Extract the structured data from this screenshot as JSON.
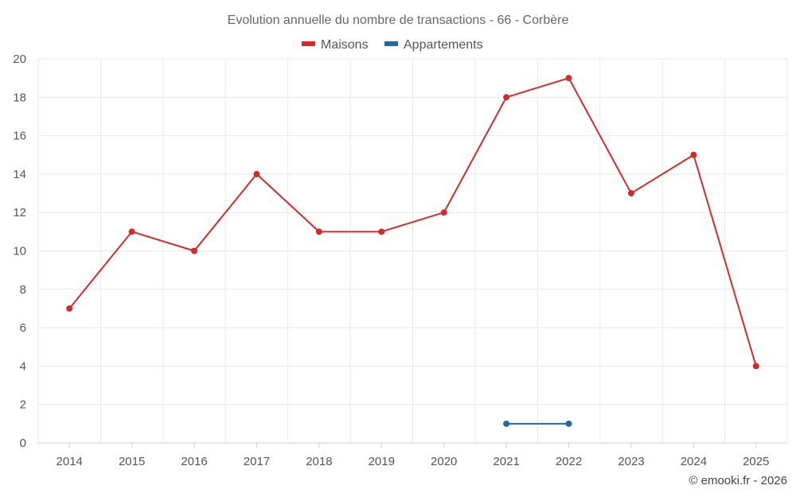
{
  "chart_data": {
    "type": "line",
    "title": "Evolution annuelle du nombre de transactions - 66 - Corbère",
    "categories": [
      "2014",
      "2015",
      "2016",
      "2017",
      "2018",
      "2019",
      "2020",
      "2021",
      "2022",
      "2023",
      "2024",
      "2025"
    ],
    "series": [
      {
        "name": "Maisons",
        "color": "#d32a2a",
        "values": [
          7,
          11,
          10,
          14,
          11,
          11,
          12,
          18,
          19,
          13,
          15,
          4
        ]
      },
      {
        "name": "Appartements",
        "color": "#1f6aa5",
        "values": [
          null,
          null,
          null,
          null,
          null,
          null,
          null,
          1,
          1,
          null,
          null,
          null
        ]
      }
    ],
    "ylim": [
      0,
      20
    ],
    "yticks": [
      0,
      2,
      4,
      6,
      8,
      10,
      12,
      14,
      16,
      18,
      20
    ],
    "xlabel": "",
    "ylabel": "",
    "grid": true,
    "legend": "top-center"
  },
  "credit": "© emooki.fr - 2026"
}
